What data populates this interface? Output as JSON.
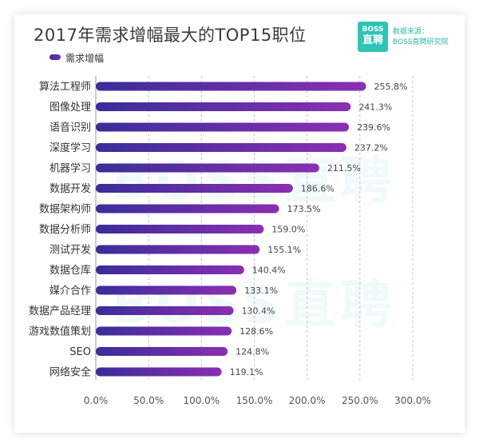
{
  "header": {
    "title": "2017年需求增幅最大的TOP15职位",
    "logo_top": "BOSS",
    "logo_bottom": "直聘",
    "source_line1": "数据来源：",
    "source_line2": "BOSS直聘研究院",
    "watermark": "BOSS直聘"
  },
  "colors": {
    "bar_start": "#3a2d9a",
    "bar_end": "#8a2fb2",
    "accent": "#2fc4b6"
  },
  "chart_data": {
    "type": "bar",
    "orientation": "horizontal",
    "title": "2017年需求增幅最大的TOP15职位",
    "legend": [
      "需求增幅"
    ],
    "categories": [
      "算法工程师",
      "图像处理",
      "语音识别",
      "深度学习",
      "机器学习",
      "数据开发",
      "数据架构师",
      "数据分析师",
      "测试开发",
      "数据仓库",
      "媒介合作",
      "数据产品经理",
      "游戏数值策划",
      "SEO",
      "网络安全"
    ],
    "values": [
      255.8,
      241.3,
      239.6,
      237.2,
      211.5,
      186.6,
      173.5,
      159.0,
      155.1,
      140.4,
      133.1,
      130.4,
      128.6,
      124.8,
      119.1
    ],
    "value_labels": [
      "255.8%",
      "241.3%",
      "239.6%",
      "237.2%",
      "211.5%",
      "186.6%",
      "173.5%",
      "159.0%",
      "155.1%",
      "140.4%",
      "133.1%",
      "130.4%",
      "128.6%",
      "124.8%",
      "119.1%"
    ],
    "xlim": [
      0,
      300
    ],
    "xticks": [
      0,
      50,
      100,
      150,
      200,
      250,
      300
    ],
    "xtick_labels": [
      "0.0%",
      "50.0%",
      "100.0%",
      "150.0%",
      "200.0%",
      "250.0%",
      "300.0%"
    ],
    "grid": true
  }
}
